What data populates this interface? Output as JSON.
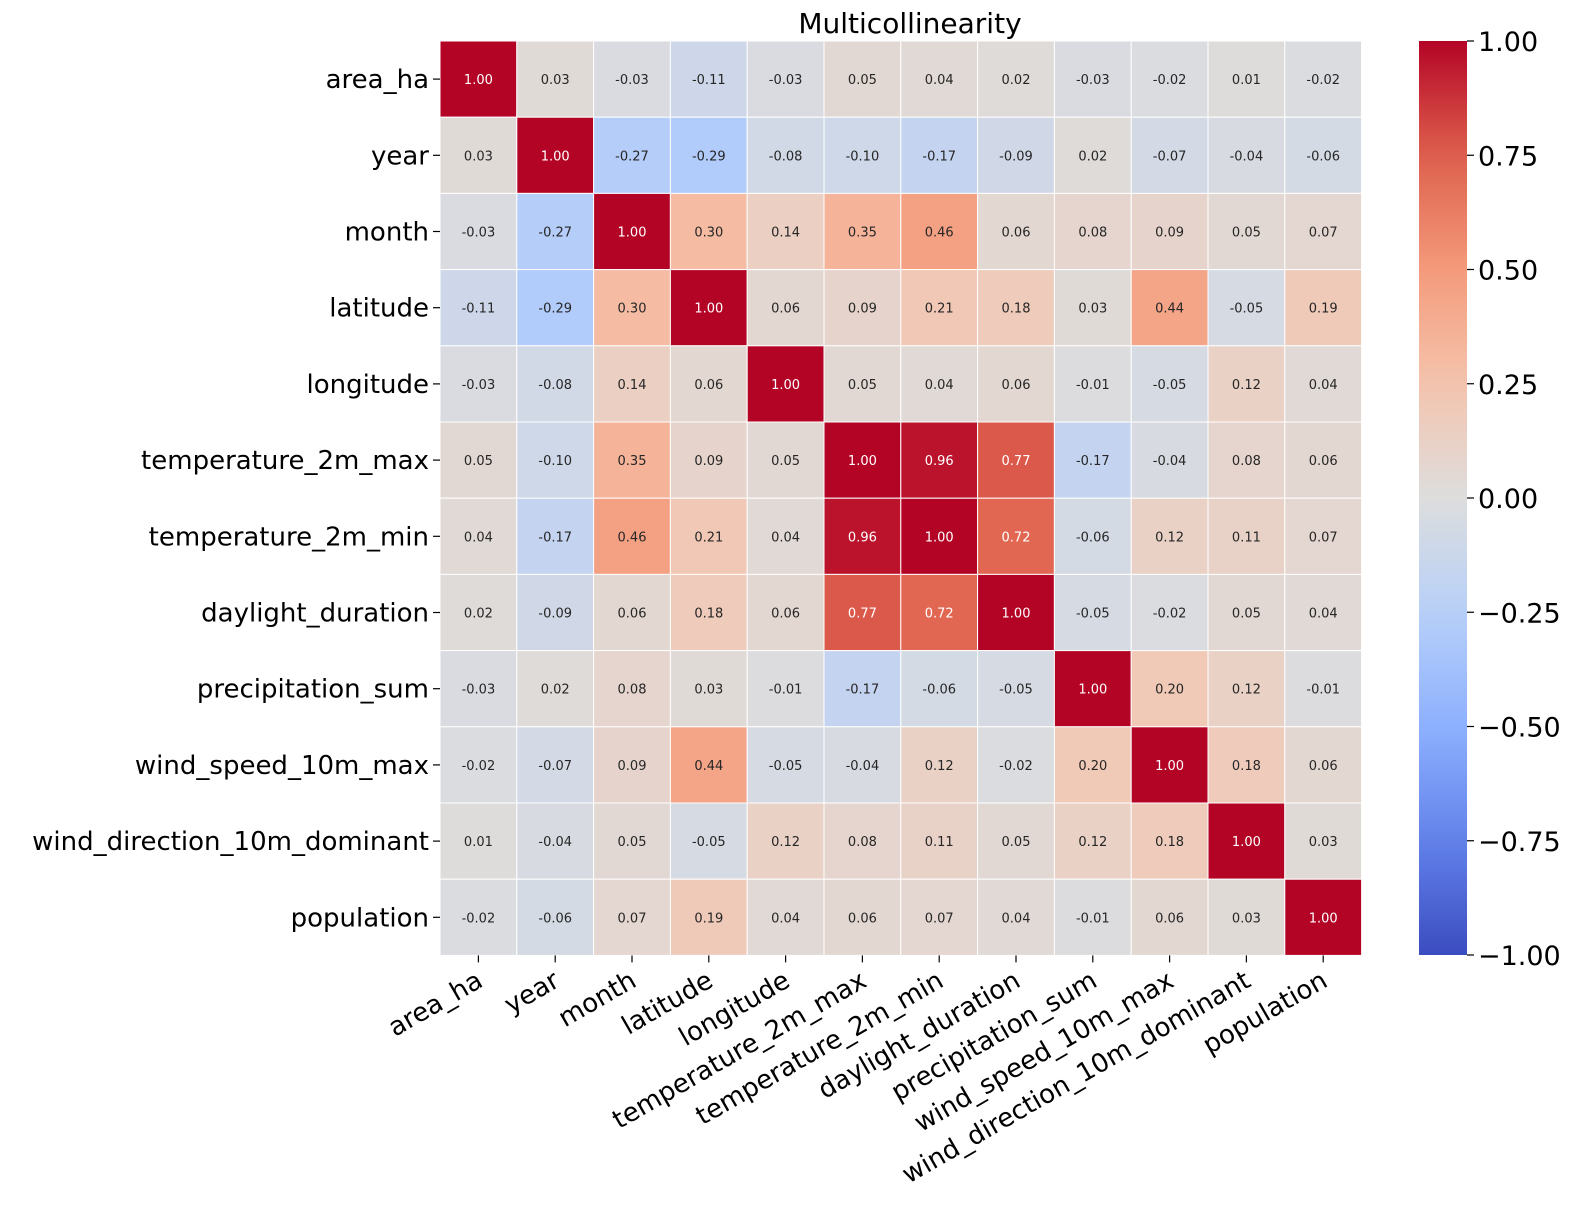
{
  "chart_data": {
    "type": "heatmap",
    "title": "Multicollinearity",
    "xlabel": "",
    "ylabel": "",
    "variables": [
      "area_ha",
      "year",
      "month",
      "latitude",
      "longitude",
      "temperature_2m_max",
      "temperature_2m_min",
      "daylight_duration",
      "precipitation_sum",
      "wind_speed_10m_max",
      "wind_direction_10m_dominant",
      "population"
    ],
    "matrix": [
      [
        1.0,
        0.03,
        -0.03,
        -0.11,
        -0.03,
        0.05,
        0.04,
        0.02,
        -0.03,
        -0.02,
        0.01,
        -0.02
      ],
      [
        0.03,
        1.0,
        -0.27,
        -0.29,
        -0.08,
        -0.1,
        -0.17,
        -0.09,
        0.02,
        -0.07,
        -0.04,
        -0.06
      ],
      [
        -0.03,
        -0.27,
        1.0,
        0.3,
        0.14,
        0.35,
        0.46,
        0.06,
        0.08,
        0.09,
        0.05,
        0.07
      ],
      [
        -0.11,
        -0.29,
        0.3,
        1.0,
        0.06,
        0.09,
        0.21,
        0.18,
        0.03,
        0.44,
        -0.05,
        0.19
      ],
      [
        -0.03,
        -0.08,
        0.14,
        0.06,
        1.0,
        0.05,
        0.04,
        0.06,
        -0.01,
        -0.05,
        0.12,
        0.04
      ],
      [
        0.05,
        -0.1,
        0.35,
        0.09,
        0.05,
        1.0,
        0.96,
        0.77,
        -0.17,
        -0.04,
        0.08,
        0.06
      ],
      [
        0.04,
        -0.17,
        0.46,
        0.21,
        0.04,
        0.96,
        1.0,
        0.72,
        -0.06,
        0.12,
        0.11,
        0.07
      ],
      [
        0.02,
        -0.09,
        0.06,
        0.18,
        0.06,
        0.77,
        0.72,
        1.0,
        -0.05,
        -0.02,
        0.05,
        0.04
      ],
      [
        -0.03,
        0.02,
        0.08,
        0.03,
        -0.01,
        -0.17,
        -0.06,
        -0.05,
        1.0,
        0.2,
        0.12,
        -0.01
      ],
      [
        -0.02,
        -0.07,
        0.09,
        0.44,
        -0.05,
        -0.04,
        0.12,
        -0.02,
        0.2,
        1.0,
        0.18,
        0.06
      ],
      [
        0.01,
        -0.04,
        0.05,
        -0.05,
        0.12,
        0.08,
        0.11,
        0.05,
        0.12,
        0.18,
        1.0,
        0.03
      ],
      [
        -0.02,
        -0.06,
        0.07,
        0.19,
        0.04,
        0.06,
        0.07,
        0.04,
        -0.01,
        0.06,
        0.03,
        1.0
      ]
    ],
    "value_format": "0.00",
    "colormap": "coolwarm",
    "vmin": -1.0,
    "vmax": 1.0,
    "colorbar_ticks": [
      1.0,
      0.75,
      0.5,
      0.25,
      0.0,
      -0.25,
      -0.5,
      -0.75,
      -1.0
    ],
    "colorbar_tick_labels": [
      "1.00",
      "0.75",
      "0.50",
      "0.25",
      "0.00",
      "−0.25",
      "−0.50",
      "−0.75",
      "−1.00"
    ],
    "grid": true,
    "x_tick_rotation": "30 degrees, right-aligned"
  }
}
